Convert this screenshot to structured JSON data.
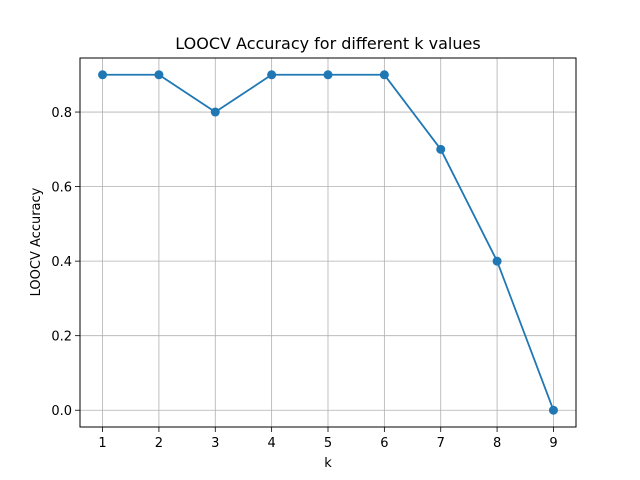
{
  "chart_data": {
    "type": "line",
    "title": "LOOCV Accuracy for different k values",
    "xlabel": "k",
    "ylabel": "LOOCV Accuracy",
    "x": [
      1,
      2,
      3,
      4,
      5,
      6,
      7,
      8,
      9
    ],
    "series": [
      {
        "values": [
          0.9,
          0.9,
          0.8,
          0.9,
          0.9,
          0.9,
          0.7,
          0.4,
          0.0
        ]
      }
    ],
    "xticks": [
      "1",
      "2",
      "3",
      "4",
      "5",
      "6",
      "7",
      "8",
      "9"
    ],
    "yticks": [
      "0.0",
      "0.2",
      "0.4",
      "0.6",
      "0.8"
    ],
    "xlim": [
      0.6,
      9.4
    ],
    "ylim": [
      -0.045,
      0.945
    ],
    "grid": true,
    "marker": "circle",
    "colors": {
      "series": "#1f77b4",
      "grid": "#b0b0b0",
      "axes": "#000000"
    }
  }
}
